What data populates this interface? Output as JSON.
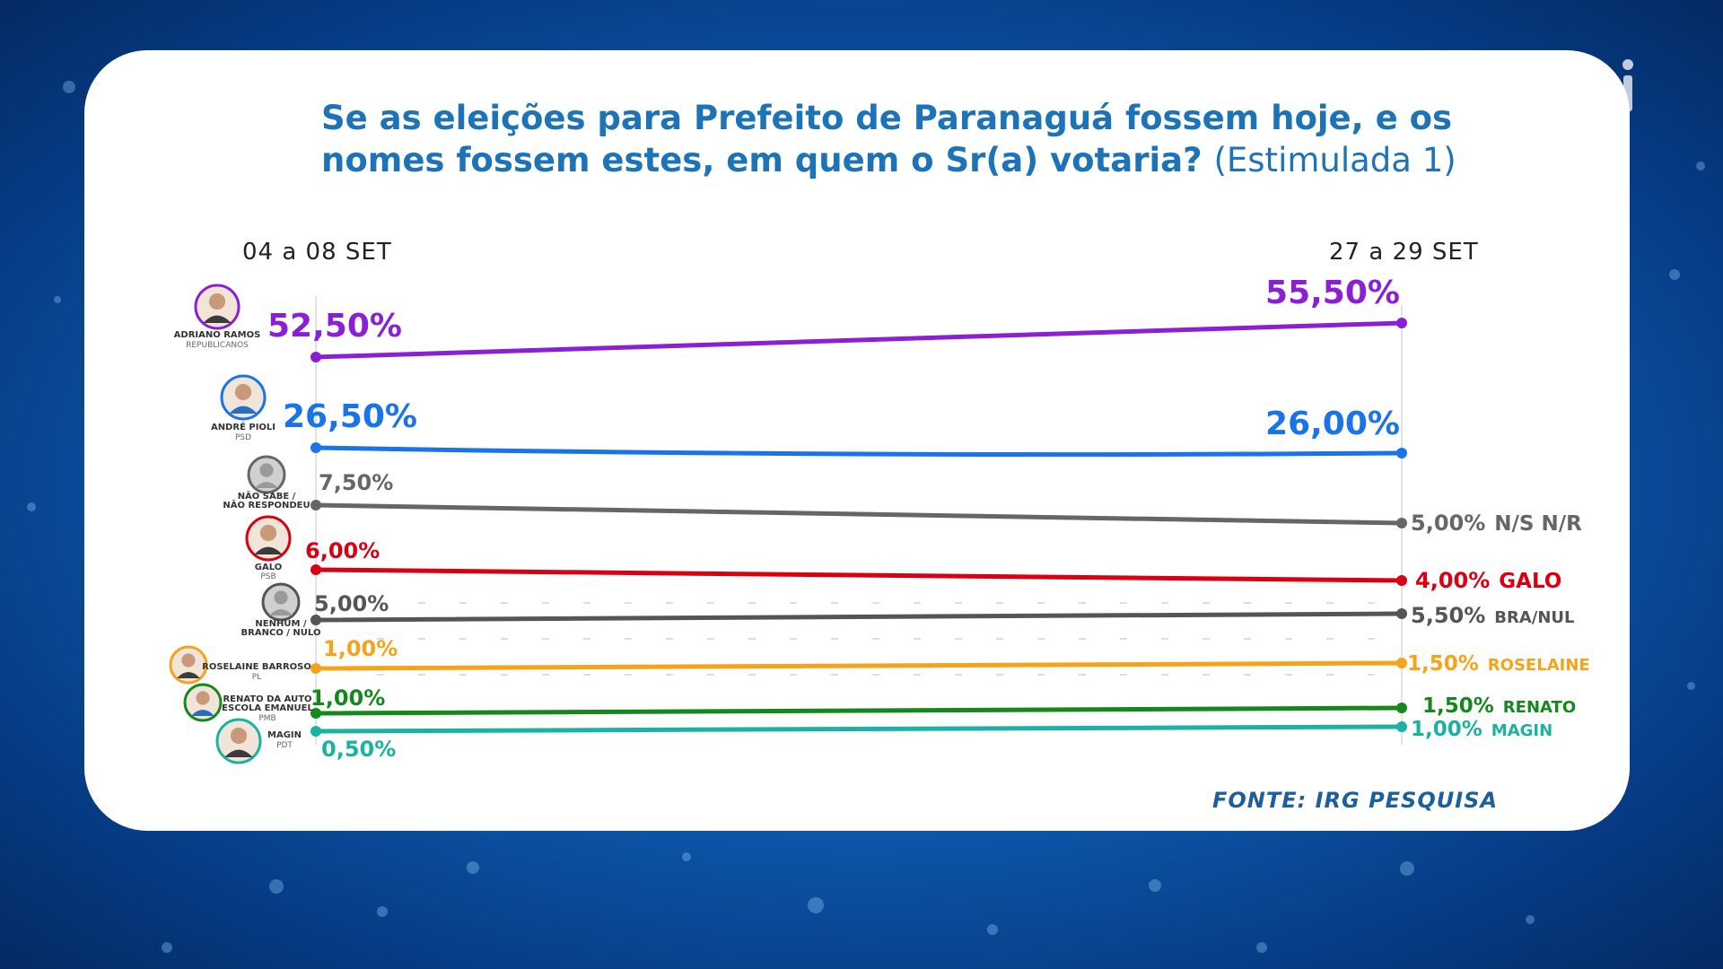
{
  "title": {
    "main": "Se as eleições para Prefeito de Paranaguá fossem hoje, e os nomes fossem estes, em quem o Sr(a) votaria?",
    "sub": "(Estimulada 1)"
  },
  "source": "FONTE: IRG PESQUISA",
  "chart_data": {
    "type": "line",
    "categories": [
      "04 a 08 SET",
      "27 a 29 SET"
    ],
    "title": "Se as eleições para Prefeito de Paranaguá fossem hoje, e os nomes fossem estes, em quem o Sr(a) votaria? (Estimulada 1)",
    "xlabel": "",
    "ylabel": "",
    "grid": false,
    "series": [
      {
        "name": "ADRIANO RAMOS",
        "party": "REPUBLICANOS",
        "values": [
          52.5,
          55.5
        ],
        "labels": [
          "52,50%",
          "55,50%"
        ],
        "end_tag": "",
        "color": "#8a1fd6",
        "avatar": "photo"
      },
      {
        "name": "ANDRÉ PIOLI",
        "party": "PSD",
        "values": [
          26.5,
          26.0
        ],
        "labels": [
          "26,50%",
          "26,00%"
        ],
        "end_tag": "",
        "color": "#1a73e8",
        "avatar": "photo"
      },
      {
        "name": "NÃO SABE / NÃO RESPONDEU",
        "party": "",
        "values": [
          7.5,
          5.0
        ],
        "labels": [
          "7,50%",
          "5,00%"
        ],
        "end_tag": "N/S N/R",
        "color": "#666666",
        "avatar": "silhouette"
      },
      {
        "name": "GALO",
        "party": "PSB",
        "values": [
          6.0,
          4.0
        ],
        "labels": [
          "6,00%",
          "4,00%"
        ],
        "end_tag": "GALO",
        "color": "#d90012",
        "avatar": "photo"
      },
      {
        "name": "NENHUM / BRANCO / NULO",
        "party": "",
        "values": [
          5.0,
          5.5
        ],
        "labels": [
          "5,00%",
          "5,50%"
        ],
        "end_tag": "BRA/NUL",
        "color": "#555555",
        "avatar": "silhouette"
      },
      {
        "name": "ROSELAINE BARROSO",
        "party": "PL",
        "values": [
          1.0,
          1.5
        ],
        "labels": [
          "1,00%",
          "1,50%"
        ],
        "end_tag": "ROSELAINE",
        "color": "#f5a31a",
        "avatar": "photo"
      },
      {
        "name": "RENATO DA AUTO ESCOLA EMANUEL",
        "party": "PMB",
        "values": [
          1.0,
          1.5
        ],
        "labels": [
          "1,00%",
          "1,50%"
        ],
        "end_tag": "RENATO",
        "color": "#15881c",
        "avatar": "photo"
      },
      {
        "name": "MAGIN",
        "party": "PDT",
        "values": [
          0.5,
          1.0
        ],
        "labels": [
          "0,50%",
          "1,00%"
        ],
        "end_tag": "MAGIN",
        "color": "#1ab3a3",
        "avatar": "photo"
      }
    ]
  }
}
